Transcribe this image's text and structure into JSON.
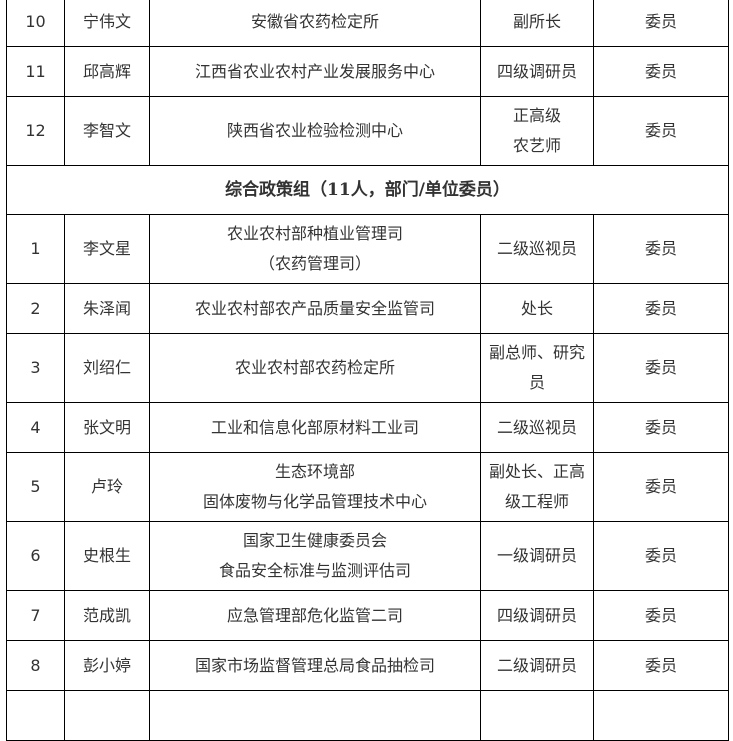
{
  "table": {
    "rows_before": [
      {
        "no": "10",
        "name": "宁伟文",
        "unit": [
          "安徽省农药检定所"
        ],
        "title": [
          "副所长"
        ],
        "role": "委员"
      },
      {
        "no": "11",
        "name": "邱高辉",
        "unit": [
          "江西省农业农村产业发展服务中心"
        ],
        "title": [
          "四级调研员"
        ],
        "role": "委员"
      },
      {
        "no": "12",
        "name": "李智文",
        "unit": [
          "陕西省农业检验检测中心"
        ],
        "title": [
          "正高级",
          "农艺师"
        ],
        "role": "委员"
      }
    ],
    "group_header": "综合政策组（11人，部门/单位委员）",
    "rows_after": [
      {
        "no": "1",
        "name": "李文星",
        "unit": [
          "农业农村部种植业管理司",
          "（农药管理司）"
        ],
        "title": [
          "二级巡视员"
        ],
        "role": "委员"
      },
      {
        "no": "2",
        "name": "朱泽闻",
        "unit": [
          "农业农村部农产品质量安全监管司"
        ],
        "title": [
          "处长"
        ],
        "role": "委员"
      },
      {
        "no": "3",
        "name": "刘绍仁",
        "unit": [
          "农业农村部农药检定所"
        ],
        "title": [
          "副总师、研究",
          "员"
        ],
        "role": "委员"
      },
      {
        "no": "4",
        "name": "张文明",
        "unit": [
          "工业和信息化部原材料工业司"
        ],
        "title": [
          "二级巡视员"
        ],
        "role": "委员"
      },
      {
        "no": "5",
        "name": "卢玲",
        "unit": [
          "生态环境部",
          "固体废物与化学品管理技术中心"
        ],
        "title": [
          "副处长、正高",
          "级工程师"
        ],
        "role": "委员"
      },
      {
        "no": "6",
        "name": "史根生",
        "unit": [
          "国家卫生健康委员会",
          "食品安全标准与监测评估司"
        ],
        "title": [
          "一级调研员"
        ],
        "role": "委员"
      },
      {
        "no": "7",
        "name": "范成凯",
        "unit": [
          "应急管理部危化监管二司"
        ],
        "title": [
          "四级调研员"
        ],
        "role": "委员"
      },
      {
        "no": "8",
        "name": "彭小婷",
        "unit": [
          "国家市场监督管理总局食品抽检司"
        ],
        "title": [
          "二级调研员"
        ],
        "role": "委员"
      }
    ]
  }
}
